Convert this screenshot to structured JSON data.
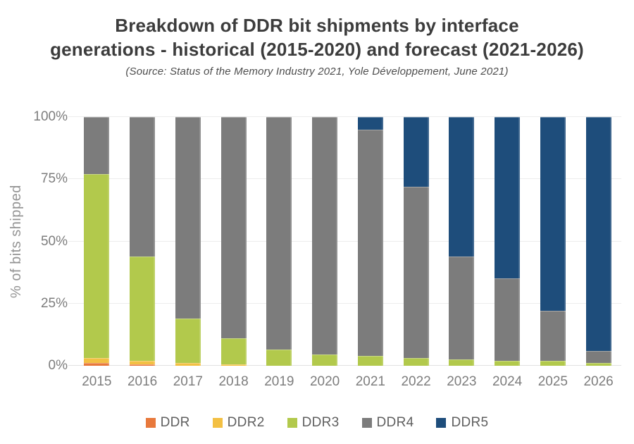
{
  "header": {
    "title_line1": "Breakdown of DDR bit shipments by interface",
    "title_line2": "generations - historical (2015-2020) and forecast (2021-2026)",
    "subtitle": "(Source: Status of the Memory Industry 2021, Yole Développement, June 2021)"
  },
  "chart_data": {
    "type": "bar",
    "stacked": true,
    "unit": "percent",
    "title": "Breakdown of DDR bit shipments by interface generations - historical (2015-2020) and forecast (2021-2026)",
    "xlabel": "",
    "ylabel": "% of bits shipped",
    "ylim": [
      0,
      100
    ],
    "yticks": [
      "0%",
      "25%",
      "50%",
      "75%",
      "100%"
    ],
    "grid": true,
    "legend_position": "bottom",
    "categories": [
      "2015",
      "2016",
      "2017",
      "2018",
      "2019",
      "2020",
      "2021",
      "2022",
      "2023",
      "2024",
      "2025",
      "2026"
    ],
    "series": [
      {
        "name": "DDR",
        "color": "#e8793c",
        "values": [
          1,
          0.5,
          0,
          0,
          0,
          0,
          0,
          0,
          0,
          0,
          0,
          0
        ]
      },
      {
        "name": "DDR2",
        "color": "#f3c043",
        "values": [
          2,
          1.5,
          1,
          0.5,
          0,
          0,
          0,
          0,
          0,
          0,
          0,
          0
        ]
      },
      {
        "name": "DDR3",
        "color": "#b2c94c",
        "values": [
          74,
          42,
          18,
          10.5,
          6.5,
          4.5,
          4,
          3,
          2.5,
          2,
          2,
          1
        ]
      },
      {
        "name": "DDR4",
        "color": "#7c7c7c",
        "values": [
          23,
          56,
          81,
          89,
          93.5,
          95.5,
          91,
          69,
          41.5,
          33,
          20,
          5
        ]
      },
      {
        "name": "DDR5",
        "color": "#1e4d7b",
        "values": [
          0,
          0,
          0,
          0,
          0,
          0,
          5,
          28,
          56,
          65,
          78,
          94
        ]
      }
    ]
  }
}
